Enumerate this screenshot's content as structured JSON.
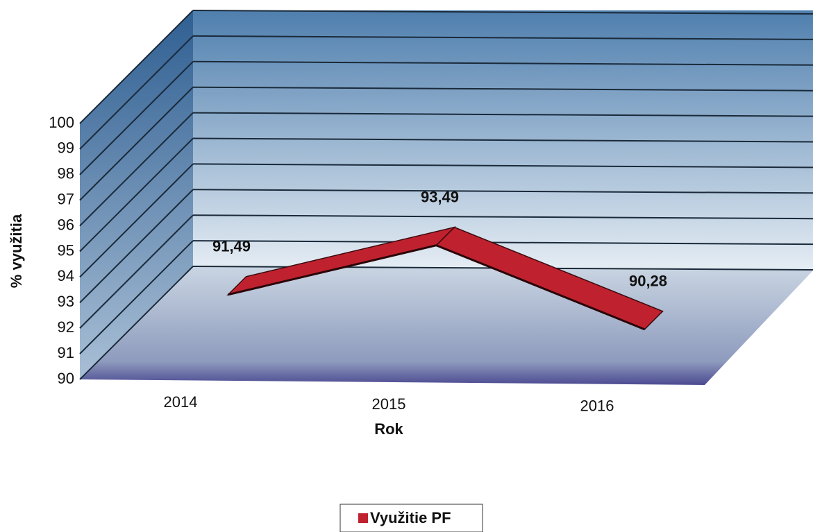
{
  "chart_data": {
    "type": "line3d",
    "categories": [
      "2014",
      "2015",
      "2016"
    ],
    "series": [
      {
        "name": "Využitie PF",
        "color": "#c0212e",
        "values": [
          91.49,
          93.49,
          90.28
        ],
        "value_labels": [
          "91,49",
          "93,49",
          "90,28"
        ]
      }
    ],
    "ylim": [
      90,
      100
    ],
    "yticks": [
      90,
      91,
      92,
      93,
      94,
      95,
      96,
      97,
      98,
      99,
      100
    ],
    "y_label": "% využitia",
    "x_label": "Rok",
    "grid": true,
    "legend": "bottom"
  }
}
